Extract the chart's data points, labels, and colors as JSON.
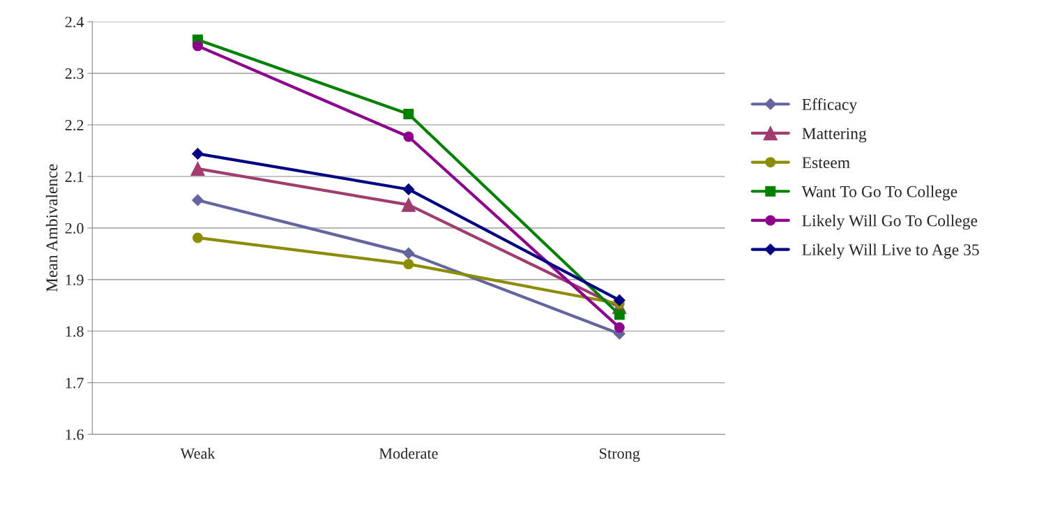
{
  "chart_data": {
    "type": "line",
    "ylabel": "Mean Ambivalence",
    "categories": [
      "Weak",
      "Moderate",
      "Strong"
    ],
    "series": [
      {
        "name": "Efficacy",
        "color": "#64649e",
        "marker": "diamond",
        "values": [
          2.054,
          1.951,
          1.795
        ]
      },
      {
        "name": "Mattering",
        "color": "#a03c6e",
        "marker": "triangle",
        "values": [
          2.115,
          2.045,
          1.847
        ]
      },
      {
        "name": "Esteem",
        "color": "#8c8c00",
        "marker": "circle",
        "values": [
          1.981,
          1.93,
          1.853
        ]
      },
      {
        "name": "Want To Go To College",
        "color": "#008000",
        "marker": "square",
        "values": [
          2.365,
          2.221,
          1.832
        ]
      },
      {
        "name": "Likely Will Go To College",
        "color": "#8c008c",
        "marker": "circle",
        "values": [
          2.353,
          2.177,
          1.807
        ]
      },
      {
        "name": "Likely Will Live to Age 35",
        "color": "#000080",
        "marker": "diamond",
        "values": [
          2.144,
          2.075,
          1.86
        ]
      }
    ],
    "ylim": [
      1.6,
      2.4
    ],
    "yticks": [
      {
        "value": 1.6,
        "label": "1.6"
      },
      {
        "value": 1.7,
        "label": "1.7"
      },
      {
        "value": 1.8,
        "label": "1.8"
      },
      {
        "value": 1.9,
        "label": "1.9"
      },
      {
        "value": 2.0,
        "label": "2.0"
      },
      {
        "value": 2.1,
        "label": "2.1"
      },
      {
        "value": 2.2,
        "label": "2.2"
      },
      {
        "value": 2.3,
        "label": "2.3"
      },
      {
        "value": 2.4,
        "label": "2.4"
      }
    ],
    "grid": "y",
    "legend": "right",
    "line_style": "solid"
  }
}
